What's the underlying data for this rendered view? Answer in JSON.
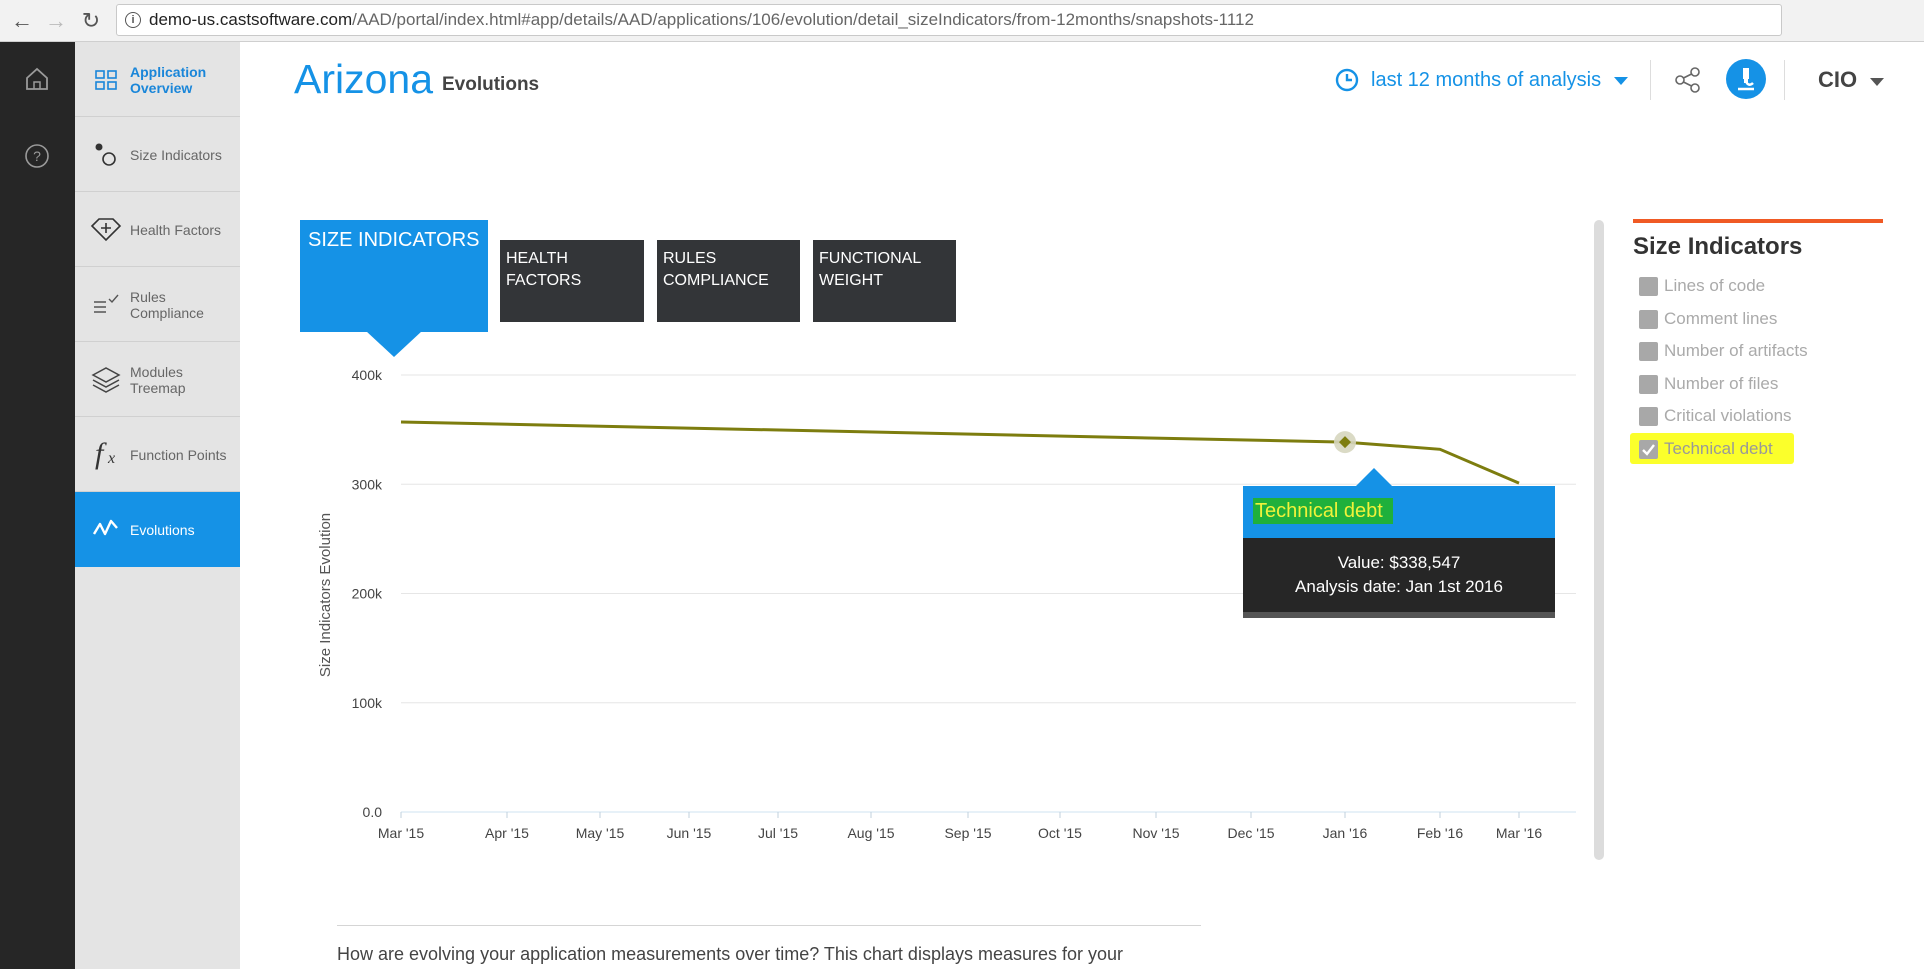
{
  "browser": {
    "url_host": "demo-us.castsoftware.com",
    "url_path": "/AAD/portal/index.html#app/details/AAD/applications/106/evolution/detail_sizeIndicators/from-12months/snapshots-1112"
  },
  "sidebar": {
    "items": [
      {
        "label": "Application Overview",
        "icon": "grid-icon"
      },
      {
        "label": "Size Indicators",
        "icon": "circles-icon"
      },
      {
        "label": "Health Factors",
        "icon": "diamond-plus-icon"
      },
      {
        "label": "Rules Compliance",
        "icon": "checklist-icon"
      },
      {
        "label": "Modules Treemap",
        "icon": "layers-icon"
      },
      {
        "label": "Function Points",
        "icon": "fx-icon"
      },
      {
        "label": "Evolutions",
        "icon": "zigzag-icon"
      }
    ],
    "fx_glyph": "f",
    "fx_sub": "x"
  },
  "header": {
    "app_name": "Arizona",
    "page_name": "Evolutions",
    "period": "last 12 months of analysis",
    "role": "CIO"
  },
  "tabs": {
    "size": "SIZE INDICATORS",
    "health": "HEALTH FACTORS",
    "rules": "RULES COMPLIANCE",
    "functional": "FUNCTIONAL WEIGHT"
  },
  "chart_data": {
    "type": "line",
    "ylabel": "Size Indicators Evolution",
    "ylim": [
      0,
      400000
    ],
    "y_ticks": [
      "0.0",
      "100k",
      "200k",
      "300k",
      "400k"
    ],
    "y_tick_values": [
      0,
      100000,
      200000,
      300000,
      400000
    ],
    "categories": [
      "Mar '15",
      "Apr '15",
      "May '15",
      "Jun '15",
      "Jul '15",
      "Aug '15",
      "Sep '15",
      "Oct '15",
      "Nov '15",
      "Dec '15",
      "Jan '16",
      "Feb '16",
      "Mar '16"
    ],
    "series": [
      {
        "name": "Technical debt",
        "color": "#7d7d0f",
        "points": [
          {
            "x": "Mar '15",
            "y": 357000
          },
          {
            "x": "Jan '16",
            "y": 338547
          },
          {
            "x": "Feb '16",
            "y": 332000
          },
          {
            "x": "Mar '16",
            "y": 301000
          }
        ]
      }
    ],
    "grid": true
  },
  "tooltip": {
    "title": "Technical debt",
    "value_line": "Value: $338,547",
    "date_line": "Analysis date: Jan 1st 2016"
  },
  "right_panel": {
    "title": "Size Indicators",
    "items": [
      {
        "label": "Lines of code",
        "checked": false
      },
      {
        "label": "Comment lines",
        "checked": false
      },
      {
        "label": "Number of artifacts",
        "checked": false
      },
      {
        "label": "Number of files",
        "checked": false
      },
      {
        "label": "Critical violations",
        "checked": false
      },
      {
        "label": "Technical debt",
        "checked": true
      }
    ]
  },
  "description": "How are evolving your application measurements over time? This chart displays measures for your"
}
